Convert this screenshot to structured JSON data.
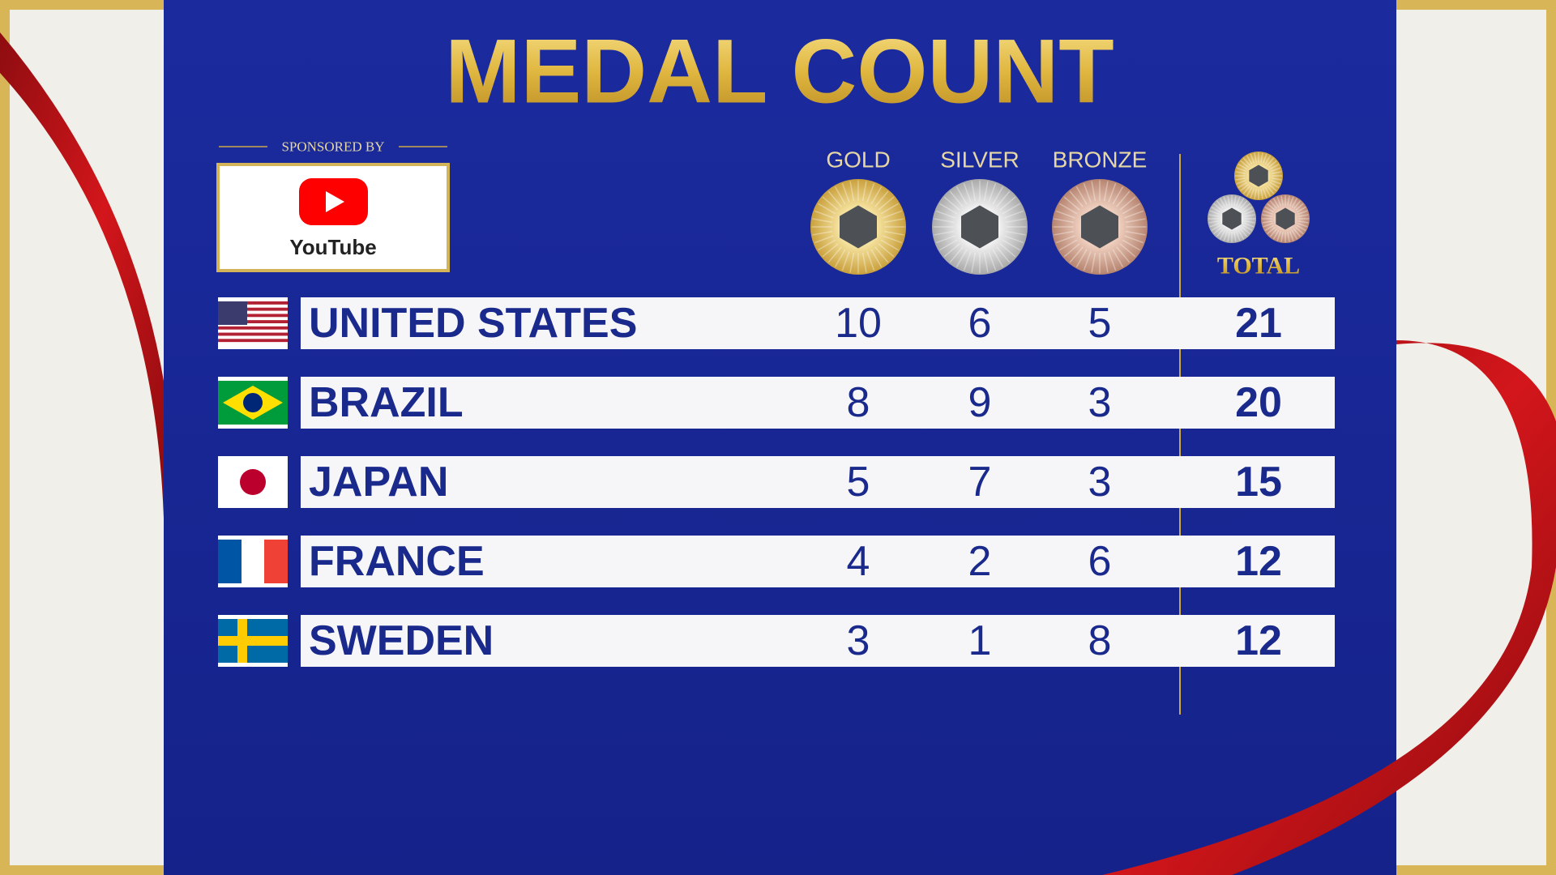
{
  "title": "MEDAL COUNT",
  "sponsor": {
    "label": "SPONSORED BY",
    "name": "YouTube"
  },
  "columns": [
    "GOLD",
    "SILVER",
    "BRONZE"
  ],
  "total_label": "TOTAL",
  "rows": [
    {
      "country": "UNITED STATES",
      "gold": 10,
      "silver": 6,
      "bronze": 5,
      "total": 21
    },
    {
      "country": "BRAZIL",
      "gold": 8,
      "silver": 9,
      "bronze": 3,
      "total": 20
    },
    {
      "country": "JAPAN",
      "gold": 5,
      "silver": 7,
      "bronze": 3,
      "total": 15
    },
    {
      "country": "FRANCE",
      "gold": 4,
      "silver": 2,
      "bronze": 6,
      "total": 12
    },
    {
      "country": "SWEDEN",
      "gold": 3,
      "silver": 1,
      "bronze": 8,
      "total": 12
    }
  ]
}
